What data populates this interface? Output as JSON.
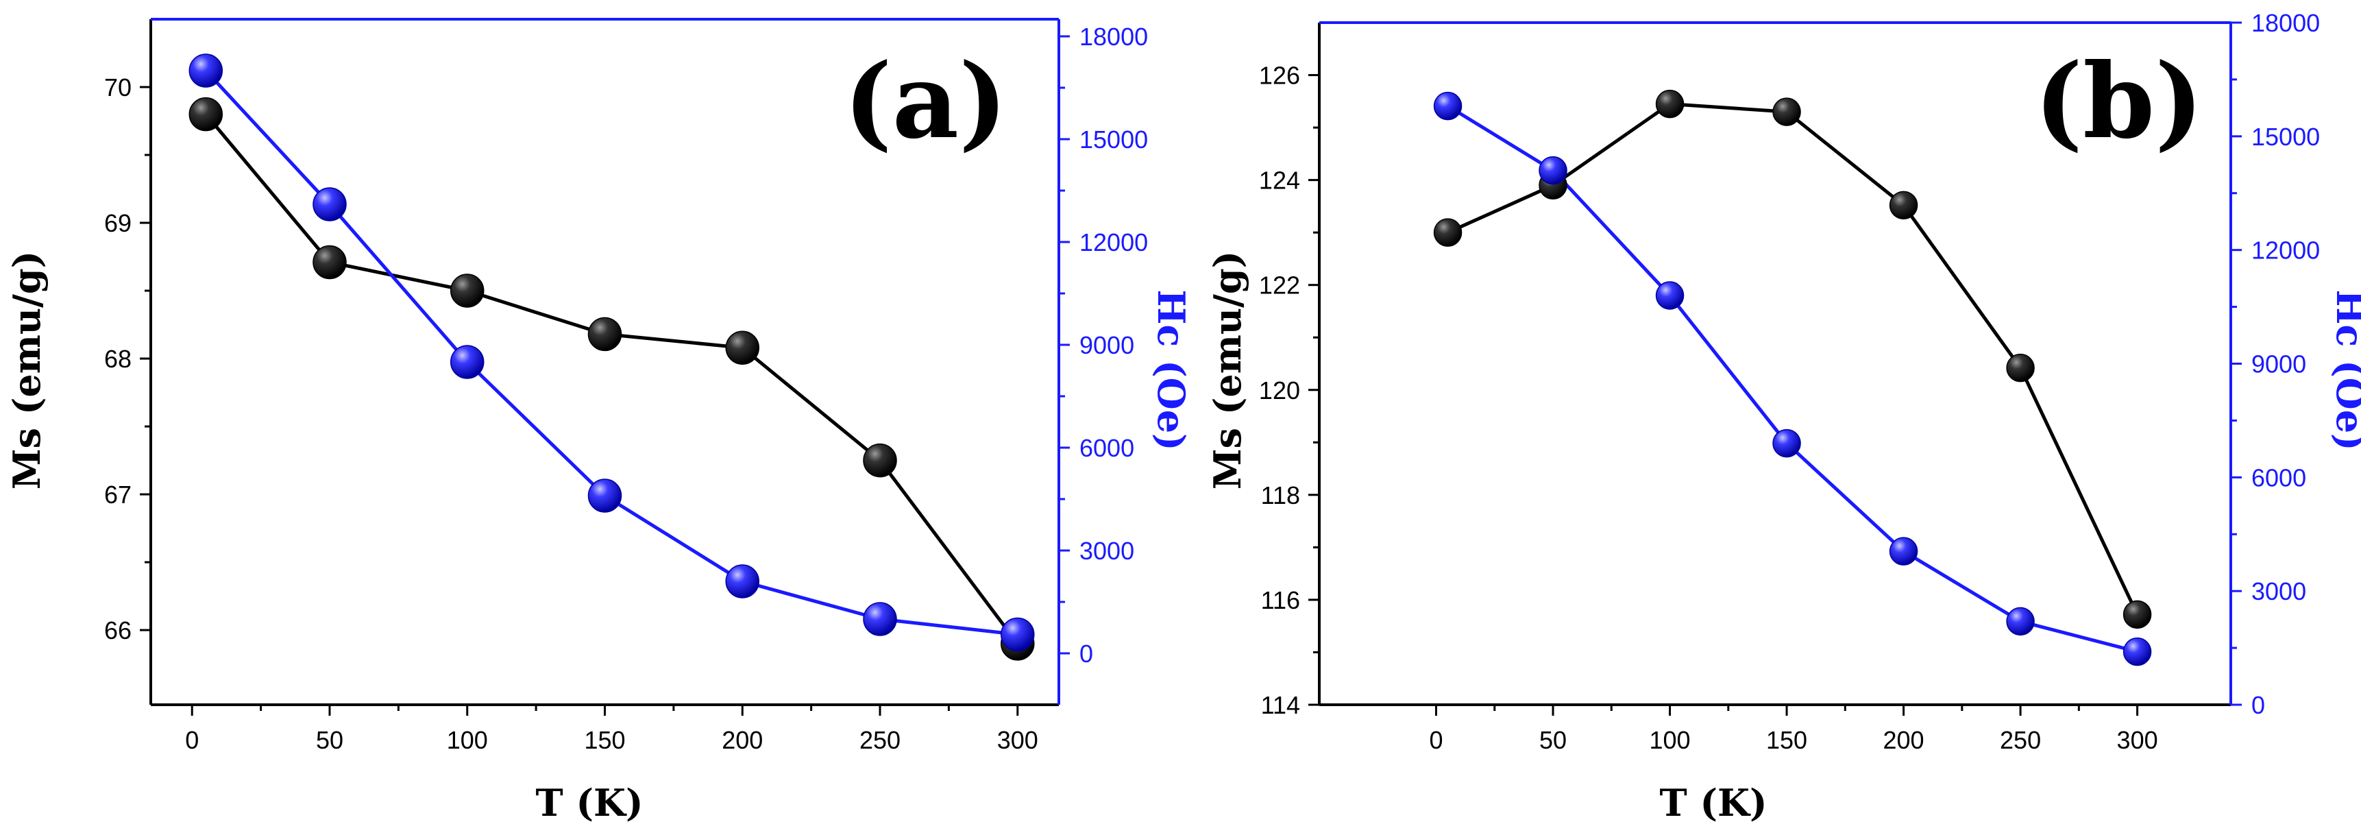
{
  "chart_data": [
    {
      "type": "line",
      "panel_label": "(a)",
      "xlabel": "T (K)",
      "ylabel": "Ms (emu/g)",
      "y2label": "Hc (Oe)",
      "xlim": [
        -15,
        315
      ],
      "xticks": [
        0,
        50,
        100,
        150,
        200,
        250,
        300
      ],
      "ylim": [
        65.45,
        70.5
      ],
      "yticks": [
        66,
        67,
        68,
        69,
        70
      ],
      "y2lim": [
        -1500,
        18500
      ],
      "y2ticks": [
        0,
        3000,
        6000,
        9000,
        12000,
        15000,
        18000
      ],
      "series": [
        {
          "name": "Ms",
          "axis": "left",
          "color": "#000000",
          "x": [
            5,
            50,
            100,
            150,
            200,
            250,
            300
          ],
          "values": [
            69.8,
            68.71,
            68.5,
            68.18,
            68.08,
            67.25,
            65.9
          ]
        },
        {
          "name": "Hc",
          "axis": "right",
          "color": "#1a1aff",
          "x": [
            5,
            50,
            100,
            150,
            200,
            250,
            300
          ],
          "values": [
            17000,
            13100,
            8500,
            4600,
            2100,
            1000,
            550
          ]
        }
      ]
    },
    {
      "type": "line",
      "panel_label": "(b)",
      "xlabel": "T (K)",
      "ylabel": "Ms (emu/g)",
      "y2label": "Hc (Oe)",
      "xlim": [
        -50,
        340
      ],
      "xticks": [
        0,
        50,
        100,
        150,
        200,
        250,
        300
      ],
      "ylim": [
        114,
        127
      ],
      "yticks": [
        114,
        116,
        118,
        120,
        122,
        124,
        126
      ],
      "y2lim": [
        0,
        18000
      ],
      "y2ticks": [
        0,
        3000,
        6000,
        9000,
        12000,
        15000,
        18000
      ],
      "series": [
        {
          "name": "Ms",
          "axis": "left",
          "color": "#000000",
          "x": [
            5,
            50,
            100,
            150,
            200,
            250,
            300
          ],
          "values": [
            123.0,
            123.9,
            125.45,
            125.3,
            123.52,
            120.42,
            115.72
          ]
        },
        {
          "name": "Hc",
          "axis": "right",
          "color": "#1a1aff",
          "x": [
            5,
            50,
            100,
            150,
            200,
            250,
            300
          ],
          "values": [
            15800,
            14100,
            10800,
            6900,
            4050,
            2200,
            1400
          ]
        }
      ]
    }
  ]
}
